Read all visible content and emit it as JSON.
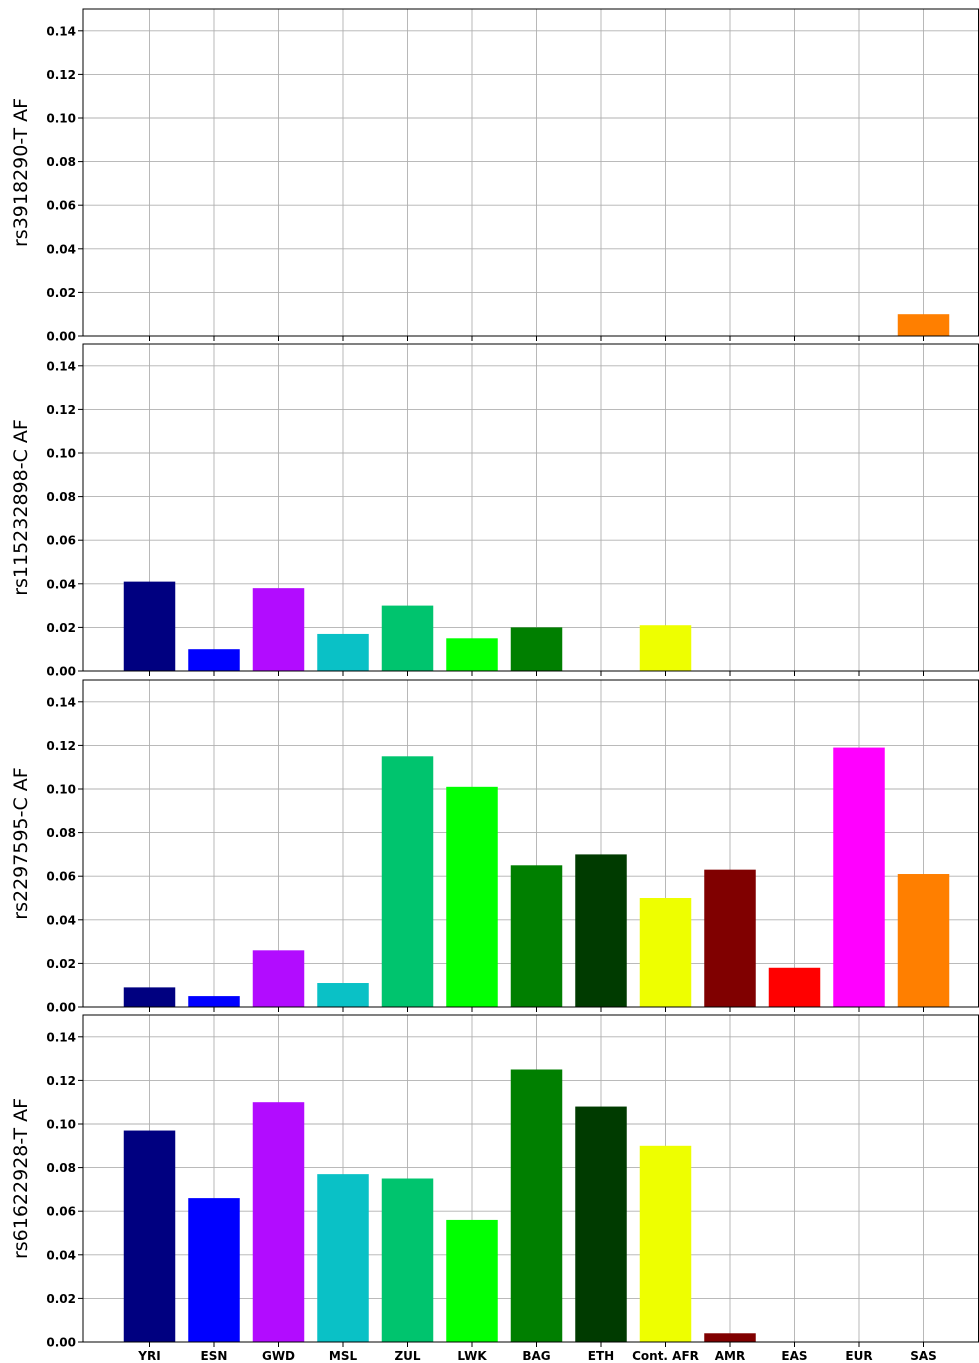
{
  "chart_data": {
    "type": "bar",
    "layout": "4 vertically stacked panels sharing x axis",
    "categories": [
      "YRI",
      "ESN",
      "GWD",
      "MSL",
      "ZUL",
      "LWK",
      "BAG",
      "ETH",
      "Cont. AFR",
      "AMR",
      "EAS",
      "EUR",
      "SAS"
    ],
    "colors": [
      "#000080",
      "#0000ff",
      "#b20cff",
      "#0ac1c6",
      "#00c46e",
      "#00ff00",
      "#007f00",
      "#003b00",
      "#eeff00",
      "#800000",
      "#ff0000",
      "#ff00ff",
      "#ff7f00"
    ],
    "ylim": [
      0,
      0.15
    ],
    "yticks": [
      "0.00",
      "0.02",
      "0.04",
      "0.06",
      "0.08",
      "0.10",
      "0.12",
      "0.14"
    ],
    "grid": true,
    "panels": [
      {
        "ylabel": "rs3918290-T AF",
        "values": [
          0,
          0,
          0,
          0,
          0,
          0,
          0,
          0,
          0,
          0,
          0,
          0,
          0.01
        ]
      },
      {
        "ylabel": "rs115232898-C AF",
        "values": [
          0.041,
          0.01,
          0.038,
          0.017,
          0.03,
          0.015,
          0.02,
          0,
          0.021,
          0,
          0,
          0,
          0
        ]
      },
      {
        "ylabel": "rs2297595-C AF",
        "values": [
          0.009,
          0.005,
          0.026,
          0.011,
          0.115,
          0.101,
          0.065,
          0.07,
          0.05,
          0.063,
          0.018,
          0.119,
          0.061
        ]
      },
      {
        "ylabel": "rs61622928-T AF",
        "values": [
          0.097,
          0.066,
          0.11,
          0.077,
          0.075,
          0.056,
          0.125,
          0.108,
          0.09,
          0.004,
          0,
          0,
          0
        ]
      }
    ]
  }
}
